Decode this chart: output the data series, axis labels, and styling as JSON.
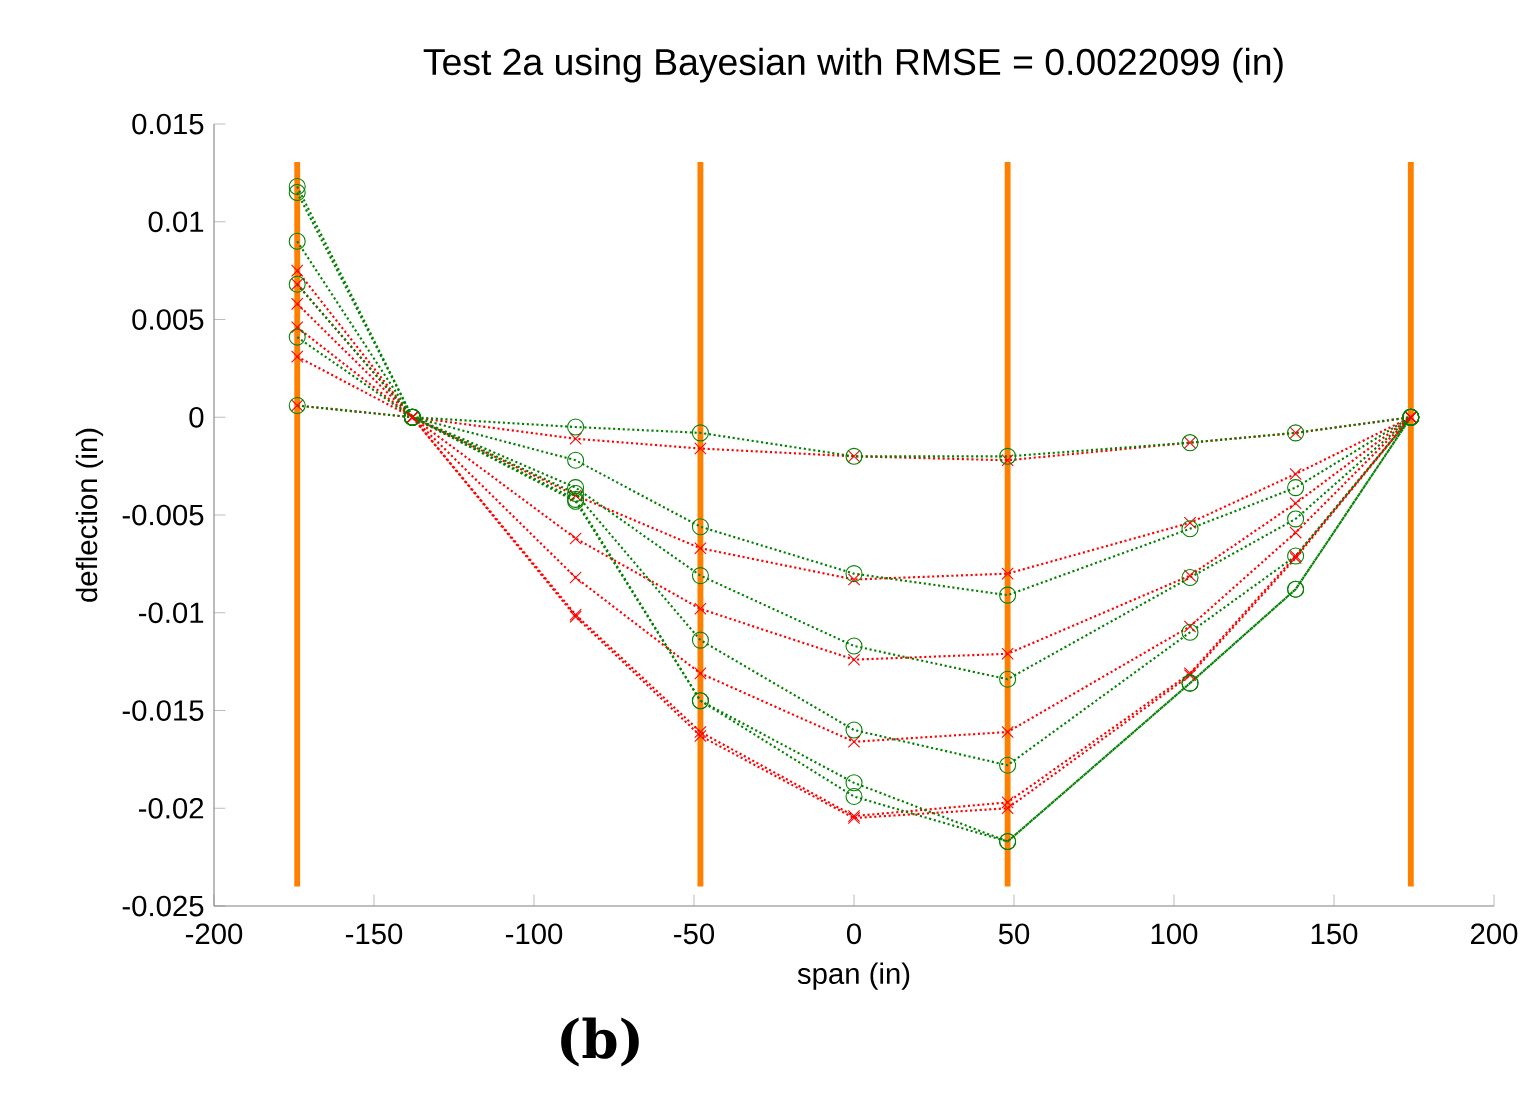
{
  "chart_data": {
    "type": "line",
    "title": "Test 2a using Bayesian with RMSE = 0.0022099 (in)",
    "xlabel": "span (in)",
    "ylabel": "deflection (in)",
    "annotations": [
      "(b)"
    ],
    "xlim": [
      -200,
      200
    ],
    "ylim": [
      -0.025,
      0.015
    ],
    "xticks": [
      -200,
      -150,
      -100,
      -50,
      0,
      50,
      100,
      150,
      200
    ],
    "yticks": [
      -0.025,
      -0.02,
      -0.015,
      -0.01,
      -0.005,
      0,
      0.005,
      0.01,
      0.015
    ],
    "x": [
      -174,
      -138,
      -87,
      -48,
      0,
      48,
      105,
      138,
      174
    ],
    "line_style": "dotted",
    "ref_lines": [
      {
        "axis": "x",
        "value": -174,
        "color": "#ff8000"
      },
      {
        "axis": "x",
        "value": -48,
        "color": "#ff8000"
      },
      {
        "axis": "x",
        "value": 48,
        "color": "#ff8000"
      },
      {
        "axis": "x",
        "value": 174,
        "color": "#ff8000"
      }
    ],
    "series": [
      {
        "color": "#ff0000",
        "marker": "cross",
        "values": [
          0.0006,
          0,
          -0.0011,
          -0.0016,
          -0.002,
          -0.0022,
          -0.0013,
          -0.0008,
          0
        ]
      },
      {
        "color": "#ff0000",
        "marker": "cross",
        "values": [
          0.0031,
          0,
          -0.004,
          -0.0067,
          -0.0083,
          -0.008,
          -0.0054,
          -0.0029,
          0
        ]
      },
      {
        "color": "#ff0000",
        "marker": "cross",
        "values": [
          0.0046,
          0,
          -0.0062,
          -0.0098,
          -0.0124,
          -0.0121,
          -0.0081,
          -0.0044,
          0
        ]
      },
      {
        "color": "#ff0000",
        "marker": "cross",
        "values": [
          0.0058,
          0,
          -0.0082,
          -0.0131,
          -0.0166,
          -0.0161,
          -0.0107,
          -0.0059,
          0
        ]
      },
      {
        "color": "#ff0000",
        "marker": "cross",
        "values": [
          0.0068,
          0,
          -0.0101,
          -0.0161,
          -0.0204,
          -0.0197,
          -0.0131,
          -0.0071,
          0
        ]
      },
      {
        "color": "#ff0000",
        "marker": "cross",
        "values": [
          0.0075,
          0,
          -0.0102,
          -0.0163,
          -0.0205,
          -0.02,
          -0.0132,
          -0.0072,
          0
        ]
      },
      {
        "color": "#008000",
        "marker": "circle",
        "values": [
          0.0006,
          0,
          -0.0005,
          -0.0008,
          -0.002,
          -0.002,
          -0.0013,
          -0.0008,
          0
        ]
      },
      {
        "color": "#008000",
        "marker": "circle",
        "values": [
          0.0041,
          0,
          -0.0022,
          -0.0056,
          -0.008,
          -0.0091,
          -0.0057,
          -0.0036,
          0
        ]
      },
      {
        "color": "#008000",
        "marker": "circle",
        "values": [
          0.0068,
          0,
          -0.0036,
          -0.0081,
          -0.0117,
          -0.0134,
          -0.0082,
          -0.0052,
          0
        ]
      },
      {
        "color": "#008000",
        "marker": "circle",
        "values": [
          0.009,
          0,
          -0.0039,
          -0.0114,
          -0.016,
          -0.0178,
          -0.011,
          -0.0071,
          0
        ]
      },
      {
        "color": "#008000",
        "marker": "circle",
        "values": [
          0.0115,
          0,
          -0.0042,
          -0.0145,
          -0.0187,
          -0.0217,
          -0.0136,
          -0.0088,
          0
        ]
      },
      {
        "color": "#008000",
        "marker": "circle",
        "values": [
          0.0118,
          0,
          -0.0043,
          -0.0145,
          -0.0194,
          -0.0217,
          -0.0136,
          -0.0088,
          0
        ]
      }
    ]
  }
}
